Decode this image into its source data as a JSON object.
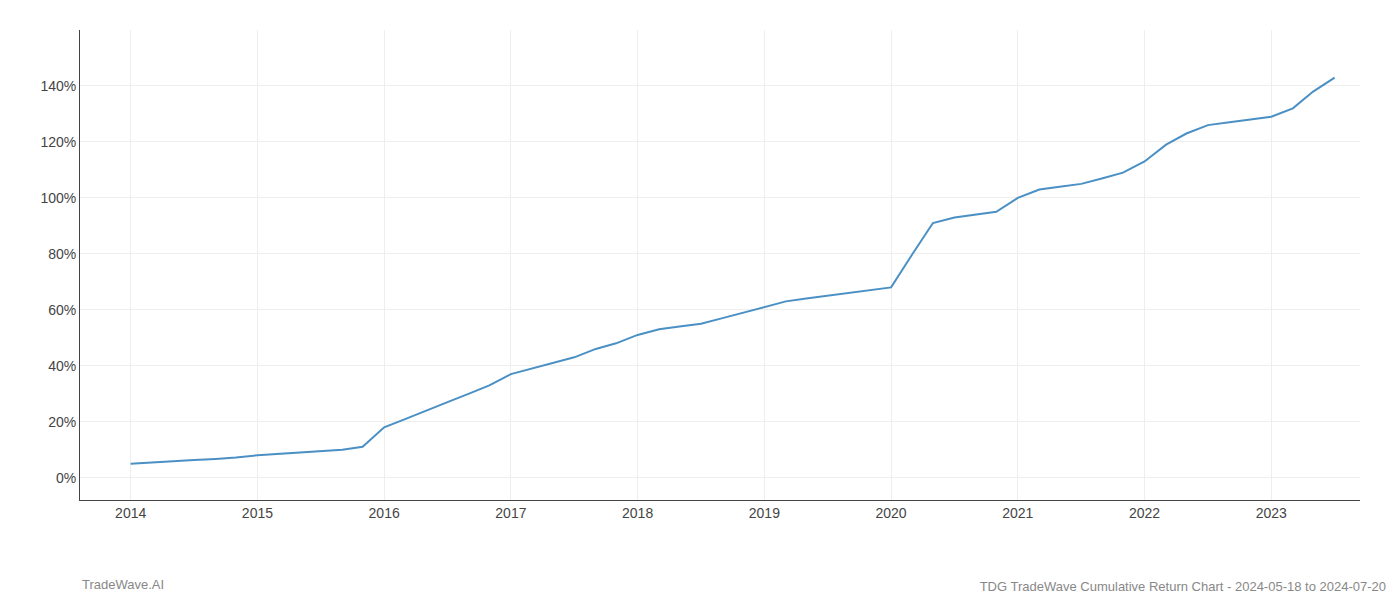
{
  "chart_data": {
    "type": "line",
    "title": "TDG TradeWave Cumulative Return Chart - 2024-05-18 to 2024-07-20",
    "annotations": [
      "TradeWave.AI"
    ],
    "x": [
      2014.0,
      2014.17,
      2014.33,
      2014.5,
      2014.67,
      2014.83,
      2015.0,
      2015.17,
      2015.33,
      2015.5,
      2015.67,
      2015.83,
      2016.0,
      2016.17,
      2016.33,
      2016.5,
      2016.67,
      2016.83,
      2017.0,
      2017.17,
      2017.33,
      2017.5,
      2017.67,
      2017.83,
      2018.0,
      2018.17,
      2018.33,
      2018.5,
      2018.67,
      2018.83,
      2019.0,
      2019.17,
      2019.33,
      2019.5,
      2019.67,
      2019.83,
      2020.0,
      2020.17,
      2020.33,
      2020.5,
      2020.67,
      2020.83,
      2021.0,
      2021.17,
      2021.33,
      2021.5,
      2021.67,
      2021.83,
      2022.0,
      2022.17,
      2022.33,
      2022.5,
      2022.67,
      2022.83,
      2023.0,
      2023.17,
      2023.33,
      2023.5
    ],
    "values": [
      5,
      5.5,
      6,
      6.3,
      6.7,
      7.2,
      8,
      8.5,
      9,
      9.5,
      10,
      11,
      18,
      21,
      24,
      27,
      30,
      33,
      37,
      39,
      41,
      43,
      46,
      48,
      51,
      53,
      54,
      55,
      57,
      59,
      61,
      63,
      64,
      65,
      66,
      67,
      68,
      80,
      91,
      93,
      94,
      95,
      100,
      103,
      104,
      105,
      107,
      109,
      113,
      119,
      123,
      126,
      127,
      128,
      129,
      132,
      138,
      143
    ],
    "color": "#4a90c4",
    "xlim": [
      2013.6,
      2023.7
    ],
    "xticks": [
      2014,
      2015,
      2016,
      2017,
      2018,
      2019,
      2020,
      2021,
      2022,
      2023
    ],
    "ylim": [
      -8,
      160
    ],
    "yticks": [
      {
        "value": 0,
        "label": "0%"
      },
      {
        "value": 20,
        "label": "20%"
      },
      {
        "value": 40,
        "label": "40%"
      },
      {
        "value": 60,
        "label": "60%"
      },
      {
        "value": 80,
        "label": "80%"
      },
      {
        "value": 100,
        "label": "100%"
      },
      {
        "value": 120,
        "label": "120%"
      },
      {
        "value": 140,
        "label": "140%"
      }
    ],
    "grid": true
  }
}
